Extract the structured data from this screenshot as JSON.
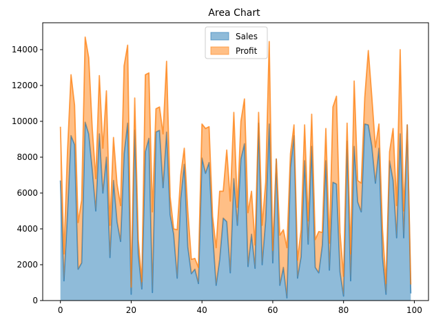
{
  "chart_data": {
    "type": "area",
    "stacked": true,
    "title": "Area Chart",
    "xlabel": "",
    "ylabel": "",
    "xlim": [
      -5,
      104
    ],
    "ylim": [
      0,
      15500
    ],
    "xticks": [
      0,
      20,
      40,
      60,
      80,
      100
    ],
    "yticks": [
      0,
      2000,
      4000,
      6000,
      8000,
      10000,
      12000,
      14000
    ],
    "grid": false,
    "legend_position": "top-center",
    "x": [
      0,
      1,
      2,
      3,
      4,
      5,
      6,
      7,
      8,
      9,
      10,
      11,
      12,
      13,
      14,
      15,
      16,
      17,
      18,
      19,
      20,
      21,
      22,
      23,
      24,
      25,
      26,
      27,
      28,
      29,
      30,
      31,
      32,
      33,
      34,
      35,
      36,
      37,
      38,
      39,
      40,
      41,
      42,
      43,
      44,
      45,
      46,
      47,
      48,
      49,
      50,
      51,
      52,
      53,
      54,
      55,
      56,
      57,
      58,
      59,
      60,
      61,
      62,
      63,
      64,
      65,
      66,
      67,
      68,
      69,
      70,
      71,
      72,
      73,
      74,
      75,
      76,
      77,
      78,
      79,
      80,
      81,
      82,
      83,
      84,
      85,
      86,
      87,
      88,
      89,
      90,
      91,
      92,
      93,
      94,
      95,
      96,
      97,
      98,
      99
    ],
    "series": [
      {
        "name": "Sales",
        "color": "#1f77b4",
        "values": [
          6700,
          1100,
          4800,
          9200,
          8700,
          1750,
          2100,
          9950,
          9300,
          7300,
          5000,
          9300,
          6000,
          8000,
          2400,
          6700,
          4400,
          3300,
          8200,
          9900,
          350,
          9500,
          2600,
          650,
          8300,
          9050,
          450,
          9400,
          9500,
          6300,
          9400,
          4800,
          3700,
          1250,
          5700,
          7600,
          3000,
          1500,
          1750,
          950,
          7950,
          7100,
          7700,
          3800,
          850,
          2300,
          4600,
          4400,
          1550,
          6800,
          4200,
          7900,
          8750,
          1900,
          3700,
          1800,
          9900,
          2000,
          4500,
          9850,
          2100,
          7900,
          850,
          1850,
          150,
          7400,
          9200,
          1250,
          2450,
          7800,
          3150,
          8600,
          1850,
          1550,
          3100,
          7800,
          1700,
          6600,
          6500,
          1600,
          250,
          8900,
          1100,
          8600,
          5500,
          4950,
          9850,
          9800,
          8600,
          6550,
          8500,
          2450,
          350,
          7800,
          6700,
          3500,
          9300,
          3500,
          9800,
          400
        ]
      },
      {
        "name": "Profit",
        "color": "#ff7f0e",
        "values": [
          3000,
          1500,
          3500,
          3400,
          2200,
          2600,
          3500,
          4750,
          4250,
          2300,
          1800,
          3250,
          2500,
          3700,
          1800,
          2400,
          2100,
          2000,
          4900,
          4350,
          400,
          1800,
          800,
          400,
          4300,
          3650,
          4500,
          1300,
          1300,
          3000,
          3950,
          1000,
          300,
          2700,
          1300,
          900,
          2000,
          800,
          600,
          900,
          1900,
          2500,
          2000,
          900,
          2100,
          3800,
          1500,
          4000,
          4000,
          3700,
          1000,
          2100,
          2500,
          3000,
          2400,
          1300,
          600,
          2200,
          2100,
          4600,
          700,
          0,
          2800,
          2100,
          2800,
          800,
          600,
          1000,
          1500,
          2000,
          1300,
          1800,
          1550,
          2300,
          700,
          1800,
          1500,
          4200,
          4900,
          2200,
          1100,
          1000,
          1500,
          3650,
          1200,
          1600,
          1500,
          4150,
          2750,
          2000,
          1350,
          1550,
          600,
          500,
          2900,
          1800,
          4700,
          1500,
          0,
          500
        ]
      }
    ],
    "xtick_labels": [
      "0",
      "20",
      "40",
      "60",
      "80",
      "100"
    ],
    "ytick_labels": [
      "0",
      "2000",
      "4000",
      "6000",
      "8000",
      "10000",
      "12000",
      "14000"
    ]
  }
}
